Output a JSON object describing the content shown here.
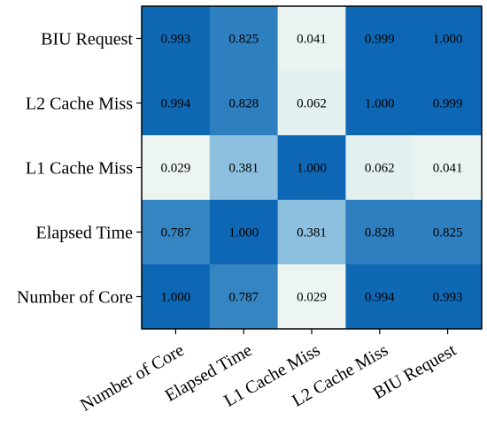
{
  "chart_data": {
    "type": "heatmap",
    "title": "",
    "xlabel": "",
    "ylabel": "",
    "x_categories": [
      "Number of Core",
      "Elapsed Time",
      "L1 Cache Miss",
      "L2 Cache Miss",
      "BIU Request"
    ],
    "y_categories": [
      "BIU Request",
      "L2 Cache Miss",
      "L1 Cache Miss",
      "Elapsed Time",
      "Number of Core"
    ],
    "values": [
      [
        0.993,
        0.825,
        0.041,
        0.999,
        1.0
      ],
      [
        0.994,
        0.828,
        0.062,
        1.0,
        0.999
      ],
      [
        0.029,
        0.381,
        1.0,
        0.062,
        0.041
      ],
      [
        0.787,
        1.0,
        0.381,
        0.828,
        0.825
      ],
      [
        1.0,
        0.787,
        0.029,
        0.994,
        0.993
      ]
    ],
    "value_labels": [
      [
        "0.993",
        "0.825",
        "0.041",
        "0.999",
        "1.000"
      ],
      [
        "0.994",
        "0.828",
        "0.062",
        "1.000",
        "0.999"
      ],
      [
        "0.029",
        "0.381",
        "1.000",
        "0.062",
        "0.041"
      ],
      [
        "0.787",
        "1.000",
        "0.381",
        "0.828",
        "0.825"
      ],
      [
        "1.000",
        "0.787",
        "0.029",
        "0.994",
        "0.993"
      ]
    ],
    "color_scale": {
      "min": 0,
      "max": 1,
      "low_color": "#f4f9f4",
      "high_color": "#0e67b4"
    },
    "legend": "none",
    "grid": false
  }
}
